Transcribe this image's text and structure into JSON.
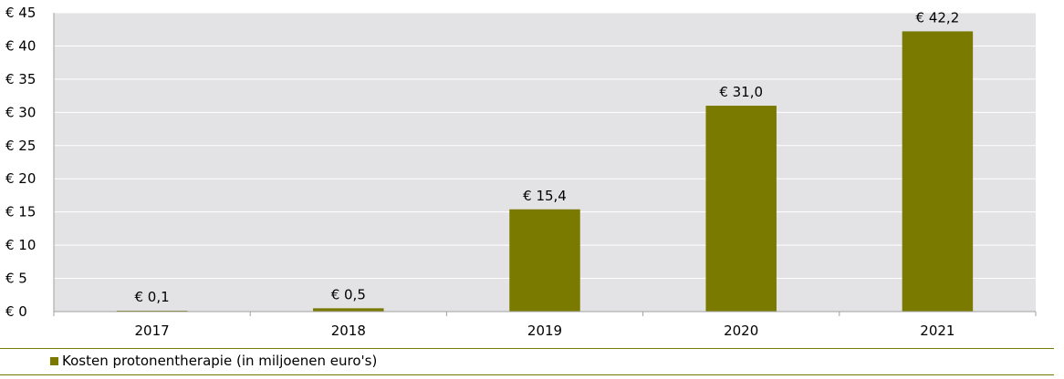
{
  "chart_data": {
    "type": "bar",
    "categories": [
      "2017",
      "2018",
      "2019",
      "2020",
      "2021"
    ],
    "series": [
      {
        "name": "Kosten protonentherapie (in miljoenen euro's)",
        "values": [
          0.1,
          0.5,
          15.4,
          31.0,
          42.2
        ],
        "data_labels": [
          "€ 0,1",
          "€ 0,5",
          "€ 15,4",
          "€ 31,0",
          "€ 42,2"
        ]
      }
    ],
    "y_ticks": [
      "€ 0",
      "€ 5",
      "€ 10",
      "€ 15",
      "€ 20",
      "€ 25",
      "€ 30",
      "€ 35",
      "€ 40",
      "€ 45"
    ],
    "ylim": [
      0,
      45
    ],
    "grid": true,
    "legend_position": "bottom-left",
    "colors": {
      "bar": "#7a7a00",
      "plot_background": "#e3e3e6",
      "gridline": "#ffffff",
      "axis": "#a0a0a0"
    }
  }
}
